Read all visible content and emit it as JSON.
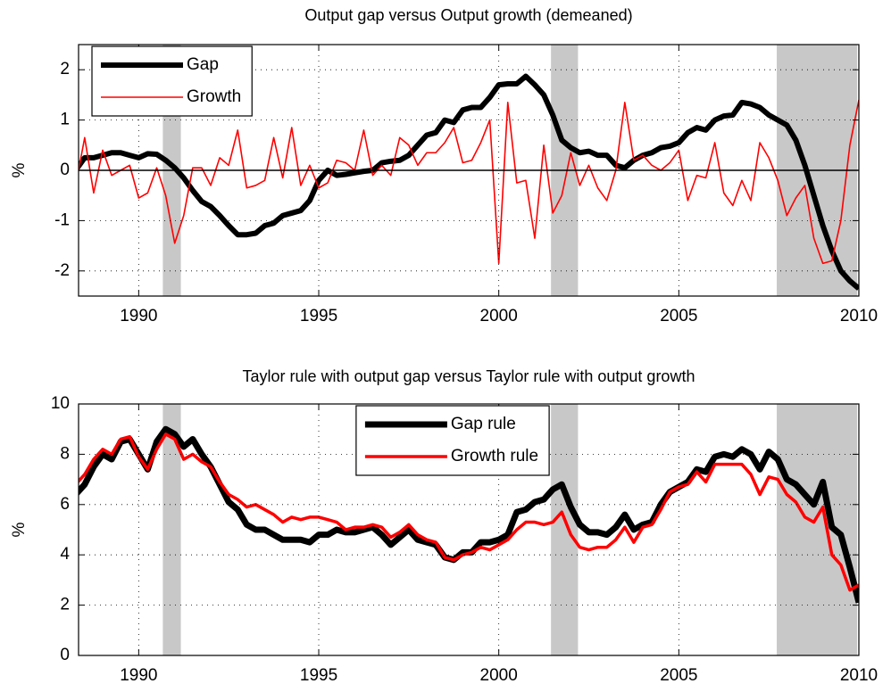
{
  "chart_data": [
    {
      "type": "line",
      "title": "Output gap versus Output growth (demeaned)",
      "ylabel": "%",
      "x": [
        1988.25,
        1988.5,
        1988.75,
        1989,
        1989.25,
        1989.5,
        1989.75,
        1990,
        1990.25,
        1990.5,
        1990.75,
        1991,
        1991.25,
        1991.5,
        1991.75,
        1992,
        1992.25,
        1992.5,
        1992.75,
        1993,
        1993.25,
        1993.5,
        1993.75,
        1994,
        1994.25,
        1994.5,
        1994.75,
        1995,
        1995.25,
        1995.5,
        1995.75,
        1996,
        1996.25,
        1996.5,
        1996.75,
        1997,
        1997.25,
        1997.5,
        1997.75,
        1998,
        1998.25,
        1998.5,
        1998.75,
        1999,
        1999.25,
        1999.5,
        1999.75,
        2000,
        2000.25,
        2000.5,
        2000.75,
        2001,
        2001.25,
        2001.5,
        2001.75,
        2002,
        2002.25,
        2002.5,
        2002.75,
        2003,
        2003.25,
        2003.5,
        2003.75,
        2004,
        2004.25,
        2004.5,
        2004.75,
        2005,
        2005.25,
        2005.5,
        2005.75,
        2006,
        2006.25,
        2006.5,
        2006.75,
        2007,
        2007.25,
        2007.5,
        2007.75,
        2008,
        2008.25,
        2008.5,
        2008.75,
        2009,
        2009.25,
        2009.5,
        2009.75,
        2010
      ],
      "series": [
        {
          "name": "Gap",
          "color": "#000000",
          "linewidth": 6,
          "values": [
            0.0,
            0.25,
            0.25,
            0.3,
            0.35,
            0.35,
            0.3,
            0.25,
            0.33,
            0.32,
            0.2,
            0.05,
            -0.15,
            -0.4,
            -0.62,
            -0.72,
            -0.9,
            -1.1,
            -1.28,
            -1.28,
            -1.25,
            -1.1,
            -1.05,
            -0.9,
            -0.85,
            -0.8,
            -0.6,
            -0.2,
            0.0,
            -0.1,
            -0.08,
            -0.05,
            -0.02,
            0.0,
            0.15,
            0.18,
            0.2,
            0.3,
            0.5,
            0.7,
            0.75,
            1.0,
            0.95,
            1.2,
            1.25,
            1.25,
            1.45,
            1.7,
            1.72,
            1.72,
            1.87,
            1.7,
            1.5,
            1.1,
            0.6,
            0.45,
            0.35,
            0.38,
            0.3,
            0.3,
            0.1,
            0.05,
            0.2,
            0.3,
            0.35,
            0.45,
            0.48,
            0.55,
            0.75,
            0.85,
            0.8,
            1.0,
            1.08,
            1.1,
            1.35,
            1.32,
            1.25,
            1.1,
            1.0,
            0.9,
            0.6,
            0.1,
            -0.5,
            -1.1,
            -1.6,
            -2.0,
            -2.2,
            -2.35
          ]
        },
        {
          "name": "Growth",
          "color": "#ff0000",
          "linewidth": 1.6,
          "values": [
            -0.3,
            0.65,
            -0.45,
            0.4,
            -0.1,
            0.0,
            0.1,
            -0.55,
            -0.45,
            0.05,
            -0.5,
            -1.45,
            -0.9,
            0.05,
            0.05,
            -0.3,
            0.25,
            0.1,
            0.8,
            -0.35,
            -0.3,
            -0.2,
            0.65,
            -0.15,
            0.85,
            -0.3,
            0.1,
            -0.35,
            -0.25,
            0.2,
            0.15,
            0.0,
            0.8,
            -0.1,
            0.1,
            -0.1,
            0.65,
            0.5,
            0.1,
            0.35,
            0.35,
            0.55,
            0.85,
            0.15,
            0.2,
            0.55,
            1.0,
            -1.85,
            1.35,
            -0.25,
            -0.2,
            -1.35,
            0.5,
            -0.85,
            -0.5,
            0.35,
            -0.3,
            0.1,
            -0.35,
            -0.6,
            0.0,
            1.35,
            0.2,
            0.3,
            0.1,
            0.0,
            0.15,
            0.4,
            -0.6,
            -0.1,
            -0.15,
            0.55,
            -0.45,
            -0.7,
            -0.2,
            -0.6,
            0.55,
            0.25,
            -0.2,
            -0.9,
            -0.55,
            -0.3,
            -1.35,
            -1.85,
            -1.8,
            -1.0,
            0.5,
            1.4
          ]
        }
      ],
      "recessions": [
        [
          1990.67,
          1991.17
        ],
        [
          2001.45,
          2002.2
        ],
        [
          2007.72,
          2009.95
        ]
      ],
      "recession_color": "#c8c8c8",
      "zero_line": 0,
      "xlim": [
        1988.33,
        2010
      ],
      "xticks": [
        1990,
        1995,
        2000,
        2005,
        2010
      ],
      "ylim": [
        -2.5,
        2.5
      ],
      "yticks": [
        -2,
        -1,
        0,
        1,
        2
      ],
      "grid": true,
      "legend": "upper left"
    },
    {
      "type": "line",
      "title": "Taylor rule with output gap versus Taylor rule with output growth",
      "ylabel": "%",
      "x": [
        1988.25,
        1988.5,
        1988.75,
        1989,
        1989.25,
        1989.5,
        1989.75,
        1990,
        1990.25,
        1990.5,
        1990.75,
        1991,
        1991.25,
        1991.5,
        1991.75,
        1992,
        1992.25,
        1992.5,
        1992.75,
        1993,
        1993.25,
        1993.5,
        1993.75,
        1994,
        1994.25,
        1994.5,
        1994.75,
        1995,
        1995.25,
        1995.5,
        1995.75,
        1996,
        1996.25,
        1996.5,
        1996.75,
        1997,
        1997.25,
        1997.5,
        1997.75,
        1998,
        1998.25,
        1998.5,
        1998.75,
        1999,
        1999.25,
        1999.5,
        1999.75,
        2000,
        2000.25,
        2000.5,
        2000.75,
        2001,
        2001.25,
        2001.5,
        2001.75,
        2002,
        2002.25,
        2002.5,
        2002.75,
        2003,
        2003.25,
        2003.5,
        2003.75,
        2004,
        2004.25,
        2004.5,
        2004.75,
        2005,
        2005.25,
        2005.5,
        2005.75,
        2006,
        2006.25,
        2006.5,
        2006.75,
        2007,
        2007.25,
        2007.5,
        2007.75,
        2008,
        2008.25,
        2008.5,
        2008.75,
        2009,
        2009.25,
        2009.5,
        2009.75,
        2010
      ],
      "series": [
        {
          "name": "Gap rule",
          "color": "#000000",
          "linewidth": 7,
          "values": [
            6.4,
            6.8,
            7.5,
            8.0,
            7.8,
            8.5,
            8.6,
            8.0,
            7.4,
            8.5,
            9.0,
            8.8,
            8.3,
            8.6,
            8.0,
            7.5,
            6.8,
            6.1,
            5.8,
            5.2,
            5.0,
            5.0,
            4.8,
            4.6,
            4.6,
            4.6,
            4.5,
            4.8,
            4.8,
            5.0,
            4.9,
            4.9,
            5.0,
            5.1,
            4.8,
            4.4,
            4.7,
            5.0,
            4.6,
            4.5,
            4.4,
            3.9,
            3.8,
            4.1,
            4.1,
            4.5,
            4.5,
            4.6,
            4.8,
            5.7,
            5.8,
            6.1,
            6.2,
            6.6,
            6.8,
            5.9,
            5.2,
            4.9,
            4.9,
            4.8,
            5.1,
            5.6,
            5.0,
            5.2,
            5.3,
            6.0,
            6.5,
            6.7,
            6.9,
            7.4,
            7.3,
            7.9,
            8.0,
            7.9,
            8.2,
            8.0,
            7.4,
            8.1,
            7.8,
            7.0,
            6.8,
            6.4,
            6.0,
            6.9,
            5.1,
            4.8,
            3.5,
            2.1
          ]
        },
        {
          "name": "Growth rule",
          "color": "#ff0000",
          "linewidth": 3.5,
          "values": [
            6.8,
            7.2,
            7.8,
            8.2,
            8.0,
            8.6,
            8.7,
            7.9,
            7.4,
            8.2,
            8.8,
            8.6,
            7.8,
            8.0,
            7.7,
            7.5,
            6.9,
            6.4,
            6.2,
            5.9,
            6.0,
            5.8,
            5.6,
            5.3,
            5.5,
            5.4,
            5.5,
            5.5,
            5.4,
            5.3,
            5.0,
            5.1,
            5.1,
            5.2,
            5.1,
            4.7,
            4.9,
            5.2,
            4.8,
            4.6,
            4.5,
            3.9,
            3.8,
            4.0,
            4.1,
            4.3,
            4.2,
            4.4,
            4.6,
            5.0,
            5.3,
            5.3,
            5.2,
            5.3,
            5.7,
            4.8,
            4.3,
            4.2,
            4.3,
            4.3,
            4.6,
            5.1,
            4.5,
            5.1,
            5.2,
            5.8,
            6.5,
            6.7,
            6.8,
            7.3,
            6.9,
            7.6,
            7.6,
            7.6,
            7.6,
            7.2,
            6.4,
            7.1,
            7.0,
            6.4,
            6.1,
            5.5,
            5.3,
            5.9,
            4.0,
            3.6,
            2.6,
            2.8
          ]
        }
      ],
      "recessions": [
        [
          1990.67,
          1991.17
        ],
        [
          2001.45,
          2002.2
        ],
        [
          2007.72,
          2009.95
        ]
      ],
      "recession_color": "#c8c8c8",
      "xlim": [
        1988.33,
        2010
      ],
      "xticks": [
        1990,
        1995,
        2000,
        2005,
        2010
      ],
      "ylim": [
        0,
        10
      ],
      "yticks": [
        0,
        2,
        4,
        6,
        8,
        10
      ],
      "grid": true,
      "legend": "upper center"
    }
  ]
}
